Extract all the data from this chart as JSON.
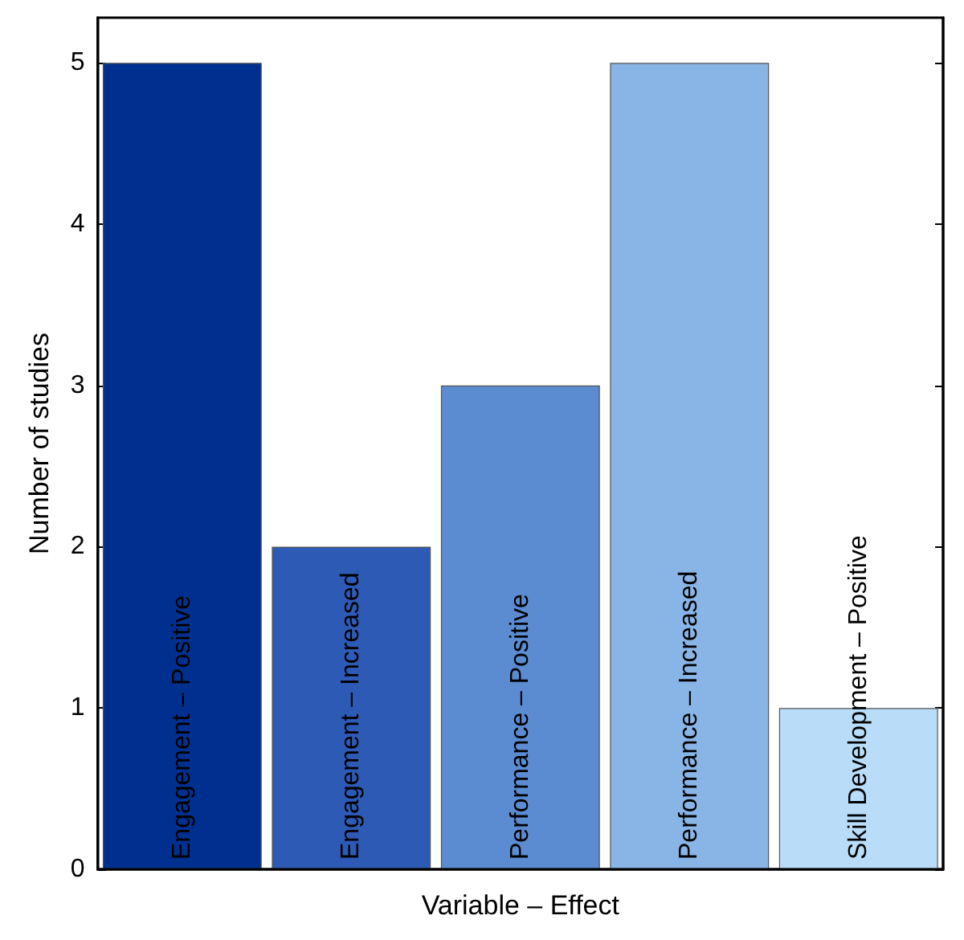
{
  "chart_data": {
    "type": "bar",
    "xlabel": "Variable – Effect",
    "ylabel": "Number of studies",
    "categories": [
      "Engagement – Positive",
      "Engagement – Increased",
      "Performance – Positive",
      "Performance – Increased",
      "Skill Development – Positive"
    ],
    "values": [
      5,
      2,
      3,
      5,
      1
    ],
    "colors": [
      "#00308f",
      "#2d5ab4",
      "#5b8bd0",
      "#88b5e6",
      "#b9ddf9"
    ],
    "ylim": [
      0,
      5.28
    ],
    "yticks": [
      0,
      1,
      2,
      3,
      4,
      5
    ],
    "grid": false
  }
}
